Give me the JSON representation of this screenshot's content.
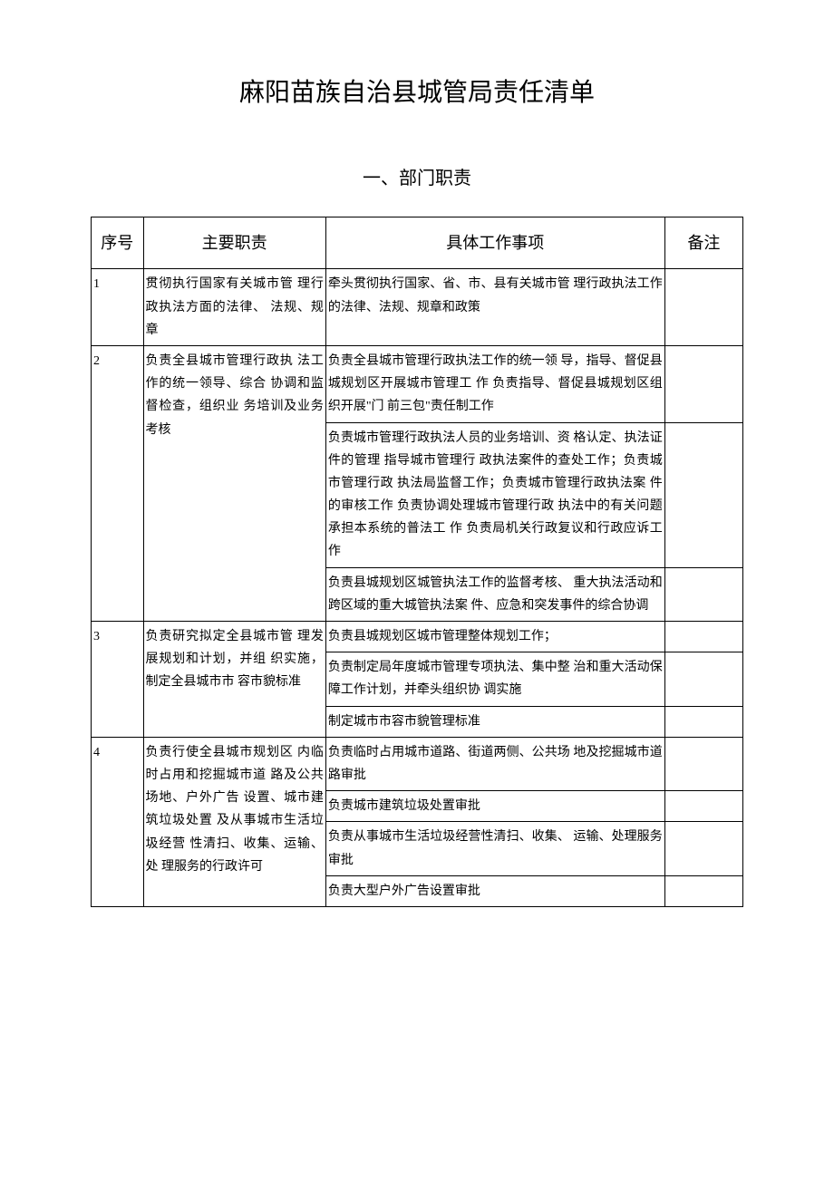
{
  "title": "麻阳苗族自治县城管局责任清单",
  "section": "一、部门职责",
  "headers": {
    "seq": "序号",
    "duty": "主要职责",
    "work": "具体工作事项",
    "note": "备注"
  },
  "rows": {
    "r1": {
      "seq": "1",
      "duty": "贯彻执行国家有关城市管 理行政执法方面的法律、 法规、规章",
      "work": "牵头贯彻执行国家、省、市、县有关城市管 理行政执法工作的法律、法规、规章和政策"
    },
    "r2": {
      "seq": "2",
      "duty": "负责全县城市管理行政执 法工作的统一领导、综合 协调和监督检查，组织业 务培训及业务考核",
      "w1": "负责全县城市管理行政执法工作的统一领 导，指导、督促县城规划区开展城市管理工 作 负责指导、督促县城规划区组织开展\"门 前三包\"责任制工作",
      "w2": "负责城市管理行政执法人员的业务培训、资 格认定、执法证件的管理 指导城市管理行 政执法案件的查处工作；负责城市管理行政 执法局监督工作；负责城市管理行政执法案 件的审核工作 负责协调处理城市管理行政 执法中的有关问题 承担本系统的普法工 作 负责局机关行政复议和行政应诉工作",
      "w3": "负责县城规划区城管执法工作的监督考核、 重大执法活动和跨区域的重大城管执法案 件、应急和突发事件的综合协调"
    },
    "r3": {
      "seq": "3",
      "duty": "负责研究拟定全县城市管 理发展规划和计划，并组 织实施，制定全县城市市 容市貌标准",
      "w1": "负责县城规划区城市管理整体规划工作；",
      "w2": "负责制定局年度城市管理专项执法、集中整 治和重大活动保障工作计划，并牵头组织协 调实施",
      "w3": "制定城市市容市貌管理标准"
    },
    "r4": {
      "seq": "4",
      "duty": "负责行使全县城市规划区 内临时占用和挖掘城市道 路及公共场地、户外广告 设置、城市建筑垃圾处置 及从事城市生活垃圾经营 性清扫、收集、运输、处 理服务的行政许可",
      "w1": "负责临时占用城市道路、街道两侧、公共场 地及挖掘城市道路审批",
      "w2": "负责城市建筑垃圾处置审批",
      "w3": "负责从事城市生活垃圾经营性清扫、收集、 运输、处理服务审批",
      "w4": "负责大型户外广告设置审批"
    }
  }
}
